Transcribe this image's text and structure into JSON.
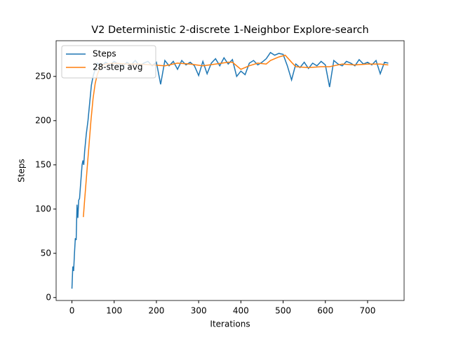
{
  "chart_data": {
    "type": "line",
    "title": "V2 Deterministic 2-discrete 1-Neighbor Explore-search",
    "xlabel": "Iterations",
    "ylabel": "Steps",
    "xlim": [
      -37.45,
      786.45
    ],
    "ylim": [
      -3.35,
      290.35
    ],
    "xticks": [
      0,
      100,
      200,
      300,
      400,
      500,
      600,
      700
    ],
    "yticks": [
      0,
      50,
      100,
      150,
      200,
      250
    ],
    "legend": "upper left",
    "series": [
      {
        "name": "Steps",
        "color": "#1f77b4",
        "x": [
          0,
          2,
          4,
          6,
          8,
          10,
          12,
          14,
          16,
          18,
          20,
          24,
          26,
          28,
          30,
          34,
          38,
          42,
          46,
          50,
          55,
          60,
          70,
          80,
          90,
          100,
          110,
          120,
          130,
          140,
          150,
          160,
          170,
          180,
          190,
          200,
          210,
          220,
          230,
          240,
          250,
          260,
          270,
          280,
          290,
          300,
          310,
          320,
          330,
          340,
          350,
          360,
          370,
          380,
          390,
          400,
          410,
          420,
          430,
          440,
          450,
          460,
          470,
          480,
          490,
          500,
          510,
          520,
          530,
          540,
          550,
          560,
          570,
          580,
          590,
          600,
          610,
          620,
          630,
          640,
          650,
          660,
          670,
          680,
          690,
          700,
          710,
          720,
          730,
          740,
          749
        ],
        "values": [
          10,
          35,
          30,
          50,
          67,
          65,
          105,
          90,
          110,
          112,
          125,
          150,
          155,
          150,
          165,
          185,
          200,
          220,
          240,
          250,
          258,
          265,
          262,
          266,
          263,
          267,
          264,
          261,
          266,
          263,
          268,
          262,
          265,
          267,
          262,
          266,
          241,
          268,
          262,
          267,
          258,
          268,
          263,
          266,
          262,
          251,
          267,
          253,
          265,
          270,
          262,
          271,
          264,
          269,
          250,
          256,
          252,
          265,
          268,
          263,
          266,
          270,
          277,
          274,
          276,
          275,
          262,
          246,
          264,
          260,
          266,
          259,
          265,
          262,
          267,
          263,
          238,
          268,
          264,
          262,
          267,
          265,
          262,
          269,
          264,
          266,
          263,
          268,
          253,
          266,
          265
        ]
      },
      {
        "name": "28-step avg",
        "color": "#ff7f0e",
        "x": [
          27,
          30,
          35,
          40,
          45,
          50,
          55,
          60,
          65,
          70,
          80,
          100,
          130,
          160,
          190,
          220,
          250,
          280,
          310,
          340,
          370,
          380,
          400,
          420,
          440,
          460,
          470,
          490,
          505,
          520,
          530,
          560,
          590,
          610,
          640,
          670,
          700,
          730,
          749
        ],
        "values": [
          91,
          110,
          140,
          170,
          200,
          225,
          242,
          252,
          258,
          262,
          264,
          265,
          264,
          264,
          263,
          262,
          265,
          264,
          262,
          264,
          266,
          266,
          258,
          262,
          265,
          264,
          268,
          272,
          274,
          266,
          261,
          260,
          261,
          261,
          264,
          263,
          264,
          264,
          263
        ]
      }
    ]
  }
}
